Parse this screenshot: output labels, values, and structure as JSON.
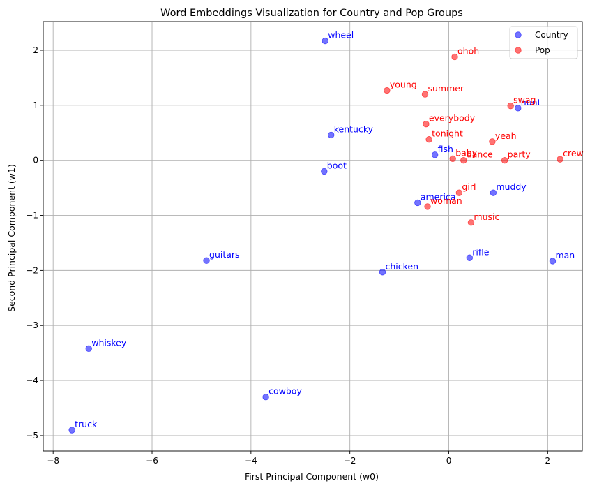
{
  "chart_data": {
    "type": "scatter",
    "title": "Word Embeddings Visualization for Country and Pop Groups",
    "xlabel": "First Principal Component (w0)",
    "ylabel": "Second Principal Component (w1)",
    "xlim": [
      -8.2,
      2.7
    ],
    "ylim": [
      -5.28,
      2.52
    ],
    "xticks": [
      -8,
      -6,
      -4,
      -2,
      0,
      2
    ],
    "yticks": [
      -5,
      -4,
      -3,
      -2,
      -1,
      0,
      1,
      2
    ],
    "xtick_labels": [
      "−8",
      "−6",
      "−4",
      "−2",
      "0",
      "2"
    ],
    "ytick_labels": [
      "−5",
      "−4",
      "−3",
      "−2",
      "−1",
      "0",
      "1",
      "2"
    ],
    "grid": true,
    "legend_position": "top-right",
    "series": [
      {
        "name": "Country",
        "color": "#0000ff",
        "points": [
          {
            "label": "wheel",
            "x": -2.5,
            "y": 2.17
          },
          {
            "label": "kentucky",
            "x": -2.38,
            "y": 0.46
          },
          {
            "label": "boot",
            "x": -2.52,
            "y": -0.2
          },
          {
            "label": "fish",
            "x": -0.28,
            "y": 0.1
          },
          {
            "label": "hunt",
            "x": 1.4,
            "y": 0.95
          },
          {
            "label": "america",
            "x": -0.63,
            "y": -0.77
          },
          {
            "label": "muddy",
            "x": 0.9,
            "y": -0.59
          },
          {
            "label": "rifle",
            "x": 0.42,
            "y": -1.77
          },
          {
            "label": "man",
            "x": 2.1,
            "y": -1.83
          },
          {
            "label": "chicken",
            "x": -1.34,
            "y": -2.03
          },
          {
            "label": "guitars",
            "x": -4.9,
            "y": -1.82
          },
          {
            "label": "whiskey",
            "x": -7.28,
            "y": -3.42
          },
          {
            "label": "cowboy",
            "x": -3.7,
            "y": -4.3
          },
          {
            "label": "truck",
            "x": -7.62,
            "y": -4.9
          }
        ]
      },
      {
        "name": "Pop",
        "color": "#ff0000",
        "points": [
          {
            "label": "ohoh",
            "x": 0.12,
            "y": 1.88
          },
          {
            "label": "young",
            "x": -1.25,
            "y": 1.27
          },
          {
            "label": "summer",
            "x": -0.48,
            "y": 1.2
          },
          {
            "label": "swag",
            "x": 1.25,
            "y": 0.99
          },
          {
            "label": "everybody",
            "x": -0.46,
            "y": 0.66
          },
          {
            "label": "tonight",
            "x": -0.4,
            "y": 0.38
          },
          {
            "label": "yeah",
            "x": 0.88,
            "y": 0.34
          },
          {
            "label": "baby",
            "x": 0.08,
            "y": 0.03
          },
          {
            "label": "dance",
            "x": 0.3,
            "y": 0.0
          },
          {
            "label": "party",
            "x": 1.13,
            "y": 0.0
          },
          {
            "label": "crew",
            "x": 2.25,
            "y": 0.02
          },
          {
            "label": "girl",
            "x": 0.21,
            "y": -0.59
          },
          {
            "label": "woman",
            "x": -0.43,
            "y": -0.84
          },
          {
            "label": "music",
            "x": 0.45,
            "y": -1.13
          }
        ]
      }
    ]
  }
}
